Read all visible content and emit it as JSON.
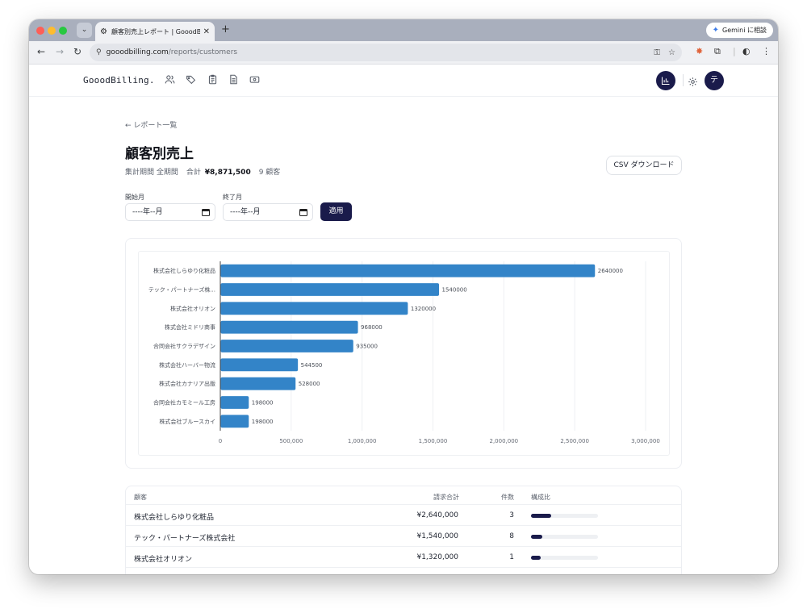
{
  "browser": {
    "tab_title": "顧客別売上レポート | GooodBilli",
    "url_host": "gooodbilling.com",
    "url_path": "/reports/customers",
    "gemini_label": "Gemini に相談"
  },
  "app": {
    "logo": "GooodBilling.",
    "avatar_initial": "テ"
  },
  "page": {
    "back_link": "← レポート一覧",
    "title": "顧客別売上",
    "period_label": "集計期間 全期間",
    "total_label": "合計",
    "total_value": "¥8,871,500",
    "customer_count": "9 顧客",
    "csv_button": "CSV ダウンロード"
  },
  "filters": {
    "start_label": "開始月",
    "start_value": "----年--月",
    "end_label": "終了月",
    "end_value": "----年--月",
    "apply_button": "適用"
  },
  "chart_data": {
    "type": "bar",
    "orientation": "horizontal",
    "categories": [
      "株式会社しらゆり化粧品",
      "テック・パートナーズ株...",
      "株式会社オリオン",
      "株式会社ミドリ商事",
      "合同会社サクラデザイン",
      "株式会社ハーバー物流",
      "株式会社カナリア出版",
      "合同会社カモミール工房",
      "株式会社ブルースカイ"
    ],
    "values": [
      2640000,
      1540000,
      1320000,
      968000,
      935000,
      544500,
      528000,
      198000,
      198000
    ],
    "xlim": [
      0,
      3000000
    ],
    "xticks": [
      "0",
      "500,000",
      "1,000,000",
      "1,500,000",
      "2,000,000",
      "2,500,000",
      "3,000,000"
    ],
    "bar_color": "#3384c8",
    "grid": true,
    "data_labels": true
  },
  "table": {
    "headers": {
      "customer": "顧客",
      "amount": "請求合計",
      "count": "件数",
      "ratio": "構成比"
    },
    "rows": [
      {
        "customer": "株式会社しらゆり化粧品",
        "amount": "¥2,640,000",
        "count": "3",
        "ratio": 0.3
      },
      {
        "customer": "テック・パートナーズ株式会社",
        "amount": "¥1,540,000",
        "count": "8",
        "ratio": 0.17
      },
      {
        "customer": "株式会社オリオン",
        "amount": "¥1,320,000",
        "count": "1",
        "ratio": 0.15
      }
    ]
  },
  "colors": {
    "primary": "#1a1b4b",
    "bar": "#3384c8"
  }
}
